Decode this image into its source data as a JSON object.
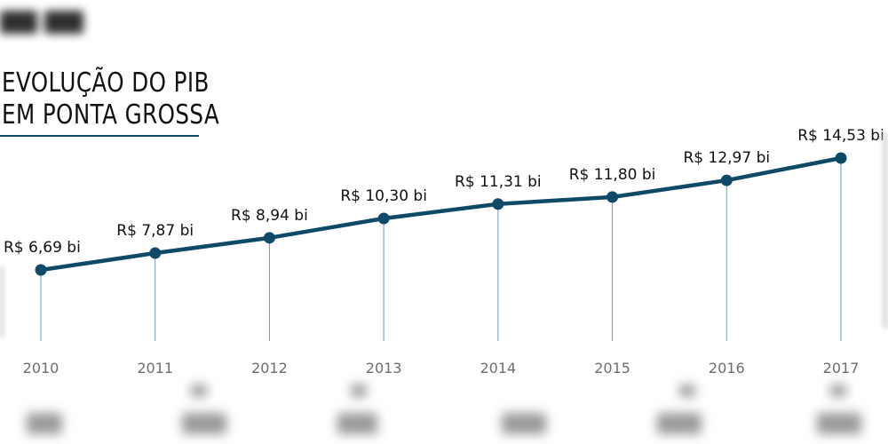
{
  "title": {
    "line1": "EVOLUÇÃO DO PIB",
    "line2": "EM PONTA GROSSA"
  },
  "colors": {
    "line": "#0e4a68",
    "marker": "#0e4a68",
    "drop_line": "#6f9cb4",
    "year_label": "#6d6d6d",
    "value_label": "#111111"
  },
  "chart_data": {
    "type": "line",
    "title": "EVOLUÇÃO DO PIB EM PONTA GROSSA",
    "xlabel": "",
    "ylabel": "",
    "x": [
      "2010",
      "2011",
      "2012",
      "2013",
      "2014",
      "2015",
      "2016",
      "2017"
    ],
    "series": [
      {
        "values": [
          6.69,
          7.87,
          8.94,
          10.3,
          11.31,
          11.8,
          12.97,
          14.53
        ],
        "labels": [
          "R$ 6,69 bi",
          "R$ 7,87 bi",
          "R$ 8,94 bi",
          "R$ 10,30 bi",
          "R$ 11,31 bi",
          "R$ 11,80 bi",
          "R$ 12,97 bi",
          "R$ 14,53 bi"
        ]
      }
    ],
    "grid": false,
    "legend": "none"
  }
}
